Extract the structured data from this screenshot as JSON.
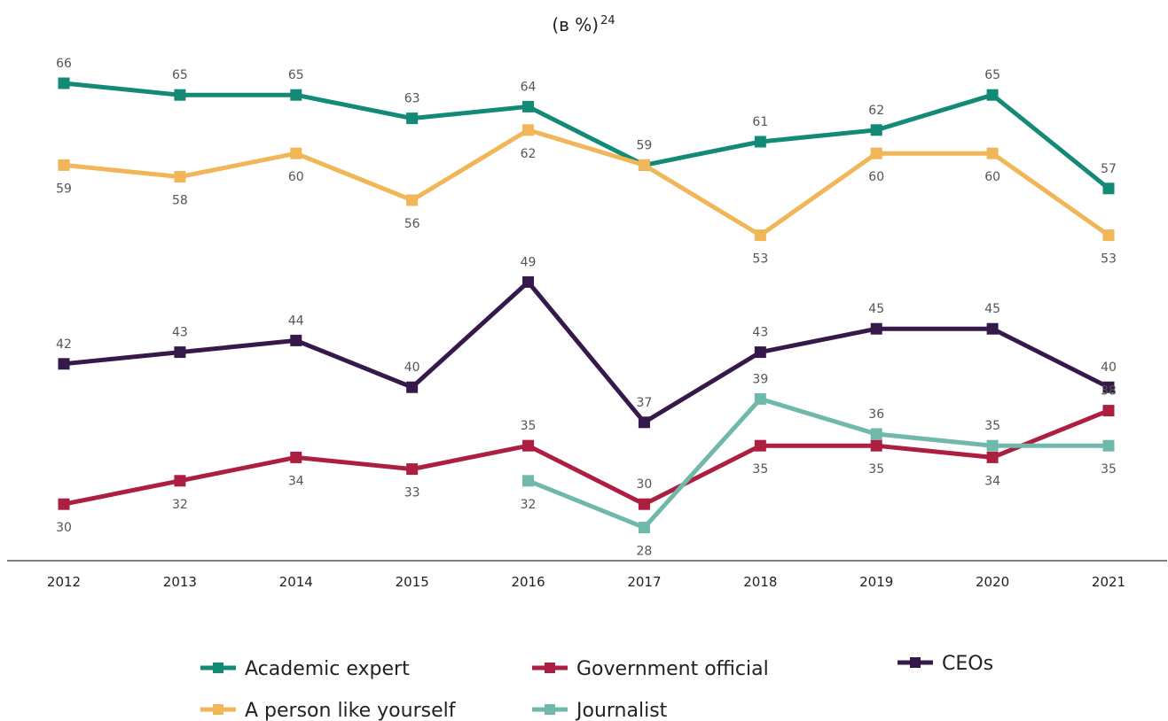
{
  "chart_data": {
    "type": "line",
    "title": "(в %)",
    "title_superscript": "24",
    "xlabel": "",
    "ylabel": "",
    "categories": [
      "2012",
      "2013",
      "2014",
      "2015",
      "2016",
      "2017",
      "2018",
      "2019",
      "2020",
      "2021"
    ],
    "ylim": [
      25,
      70
    ],
    "grid": false,
    "legend": "bottom",
    "series": [
      {
        "name": "Academic expert",
        "color": "#128a75",
        "values": [
          66,
          65,
          65,
          63,
          64,
          59,
          61,
          62,
          65,
          57
        ],
        "label_pos": [
          "above",
          "above",
          "above",
          "above",
          "above",
          "above",
          "above",
          "above",
          "above",
          "above"
        ]
      },
      {
        "name": "A person like yourself",
        "color": "#f0b657",
        "values": [
          59,
          58,
          60,
          56,
          62,
          59,
          53,
          60,
          60,
          53
        ],
        "label_pos": [
          "below",
          "below",
          "below",
          "below",
          "below",
          "none",
          "below",
          "below",
          "below",
          "below"
        ]
      },
      {
        "name": "CEOs",
        "color": "#35194b",
        "values": [
          42,
          43,
          44,
          40,
          49,
          37,
          43,
          45,
          45,
          40
        ],
        "label_pos": [
          "above",
          "above",
          "above",
          "above",
          "above",
          "above",
          "above",
          "above",
          "above",
          "above"
        ]
      },
      {
        "name": "Government official",
        "color": "#ad1f40",
        "values": [
          30,
          32,
          34,
          33,
          35,
          30,
          35,
          35,
          34,
          38
        ],
        "label_pos": [
          "below",
          "below",
          "below",
          "below",
          "above",
          "above",
          "below",
          "below",
          "below",
          "above"
        ]
      },
      {
        "name": "Journalist",
        "color": "#70b8aa",
        "values": [
          null,
          null,
          null,
          null,
          32,
          28,
          39,
          36,
          35,
          35
        ],
        "label_pos": [
          "none",
          "none",
          "none",
          "none",
          "below",
          "below",
          "above",
          "above",
          "above",
          "below"
        ]
      }
    ]
  }
}
